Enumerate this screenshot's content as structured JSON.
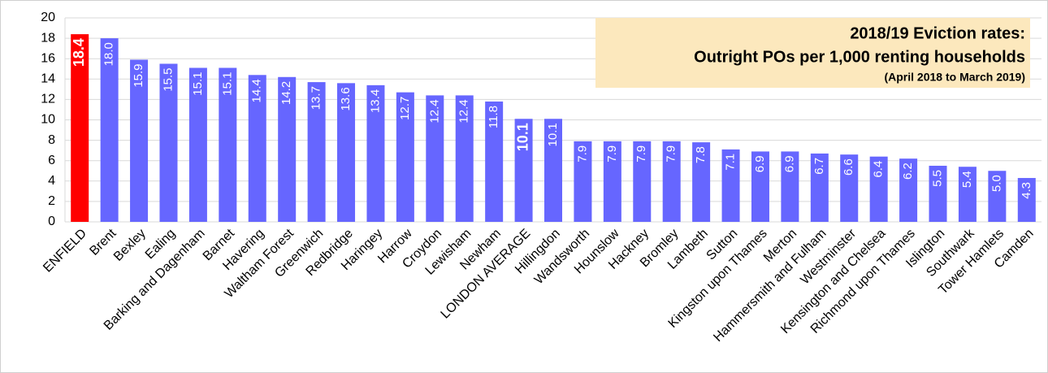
{
  "chart_data": {
    "type": "bar",
    "title": [
      "2018/19 Eviction rates:",
      "Outright POs per 1,000 renting households"
    ],
    "subtitle": "(April 2018 to March 2019)",
    "categories": [
      "ENFIELD",
      "Brent",
      "Bexley",
      "Ealing",
      "Barking and Dagenham",
      "Barnet",
      "Havering",
      "Waltham Forest",
      "Greenwich",
      "Redbridge",
      "Haringey",
      "Harrow",
      "Croydon",
      "Lewisham",
      "Newham",
      "LONDON AVERAGE",
      "Hillingdon",
      "Wandsworth",
      "Hounslow",
      "Hackney",
      "Bromley",
      "Lambeth",
      "Sutton",
      "Kingston upon Thames",
      "Merton",
      "Hammersmith and Fulham",
      "Westminster",
      "Kensington and Chelsea",
      "Richmond upon Thames",
      "Islington",
      "Southwark",
      "Tower Hamlets",
      "Camden"
    ],
    "values": [
      18.4,
      18.0,
      15.9,
      15.5,
      15.1,
      15.1,
      14.4,
      14.2,
      13.7,
      13.6,
      13.4,
      12.7,
      12.4,
      12.4,
      11.8,
      10.1,
      10.1,
      7.9,
      7.9,
      7.9,
      7.9,
      7.8,
      7.1,
      6.9,
      6.9,
      6.7,
      6.6,
      6.4,
      6.2,
      5.5,
      5.4,
      5.0,
      4.3
    ],
    "value_labels": [
      "18.4",
      "18.0",
      "15.9",
      "15.5",
      "15.1",
      "15.1",
      "14.4",
      "14.2",
      "13.7",
      "13.6",
      "13.4",
      "12.7",
      "12.4",
      "12.4",
      "11.8",
      "10.1",
      "10.1",
      "7.9",
      "7.9",
      "7.9",
      "7.9",
      "7.8",
      "7.1",
      "6.9",
      "6.9",
      "6.7",
      "6.6",
      "6.4",
      "6.2",
      "5.5",
      "5.4",
      "5.0",
      "4.3"
    ],
    "colors": [
      "#ff0000",
      "#6666ff",
      "#6666ff",
      "#6666ff",
      "#6666ff",
      "#6666ff",
      "#6666ff",
      "#6666ff",
      "#6666ff",
      "#6666ff",
      "#6666ff",
      "#6666ff",
      "#6666ff",
      "#6666ff",
      "#6666ff",
      "#6666ff",
      "#6666ff",
      "#6666ff",
      "#6666ff",
      "#6666ff",
      "#6666ff",
      "#6666ff",
      "#6666ff",
      "#6666ff",
      "#6666ff",
      "#6666ff",
      "#6666ff",
      "#6666ff",
      "#6666ff",
      "#6666ff",
      "#6666ff",
      "#6666ff",
      "#6666ff"
    ],
    "bold_value_labels": [
      0,
      15
    ],
    "ylim": [
      0,
      20
    ],
    "yticks": [
      0,
      2,
      4,
      6,
      8,
      10,
      12,
      14,
      16,
      18,
      20
    ],
    "grid": true
  }
}
